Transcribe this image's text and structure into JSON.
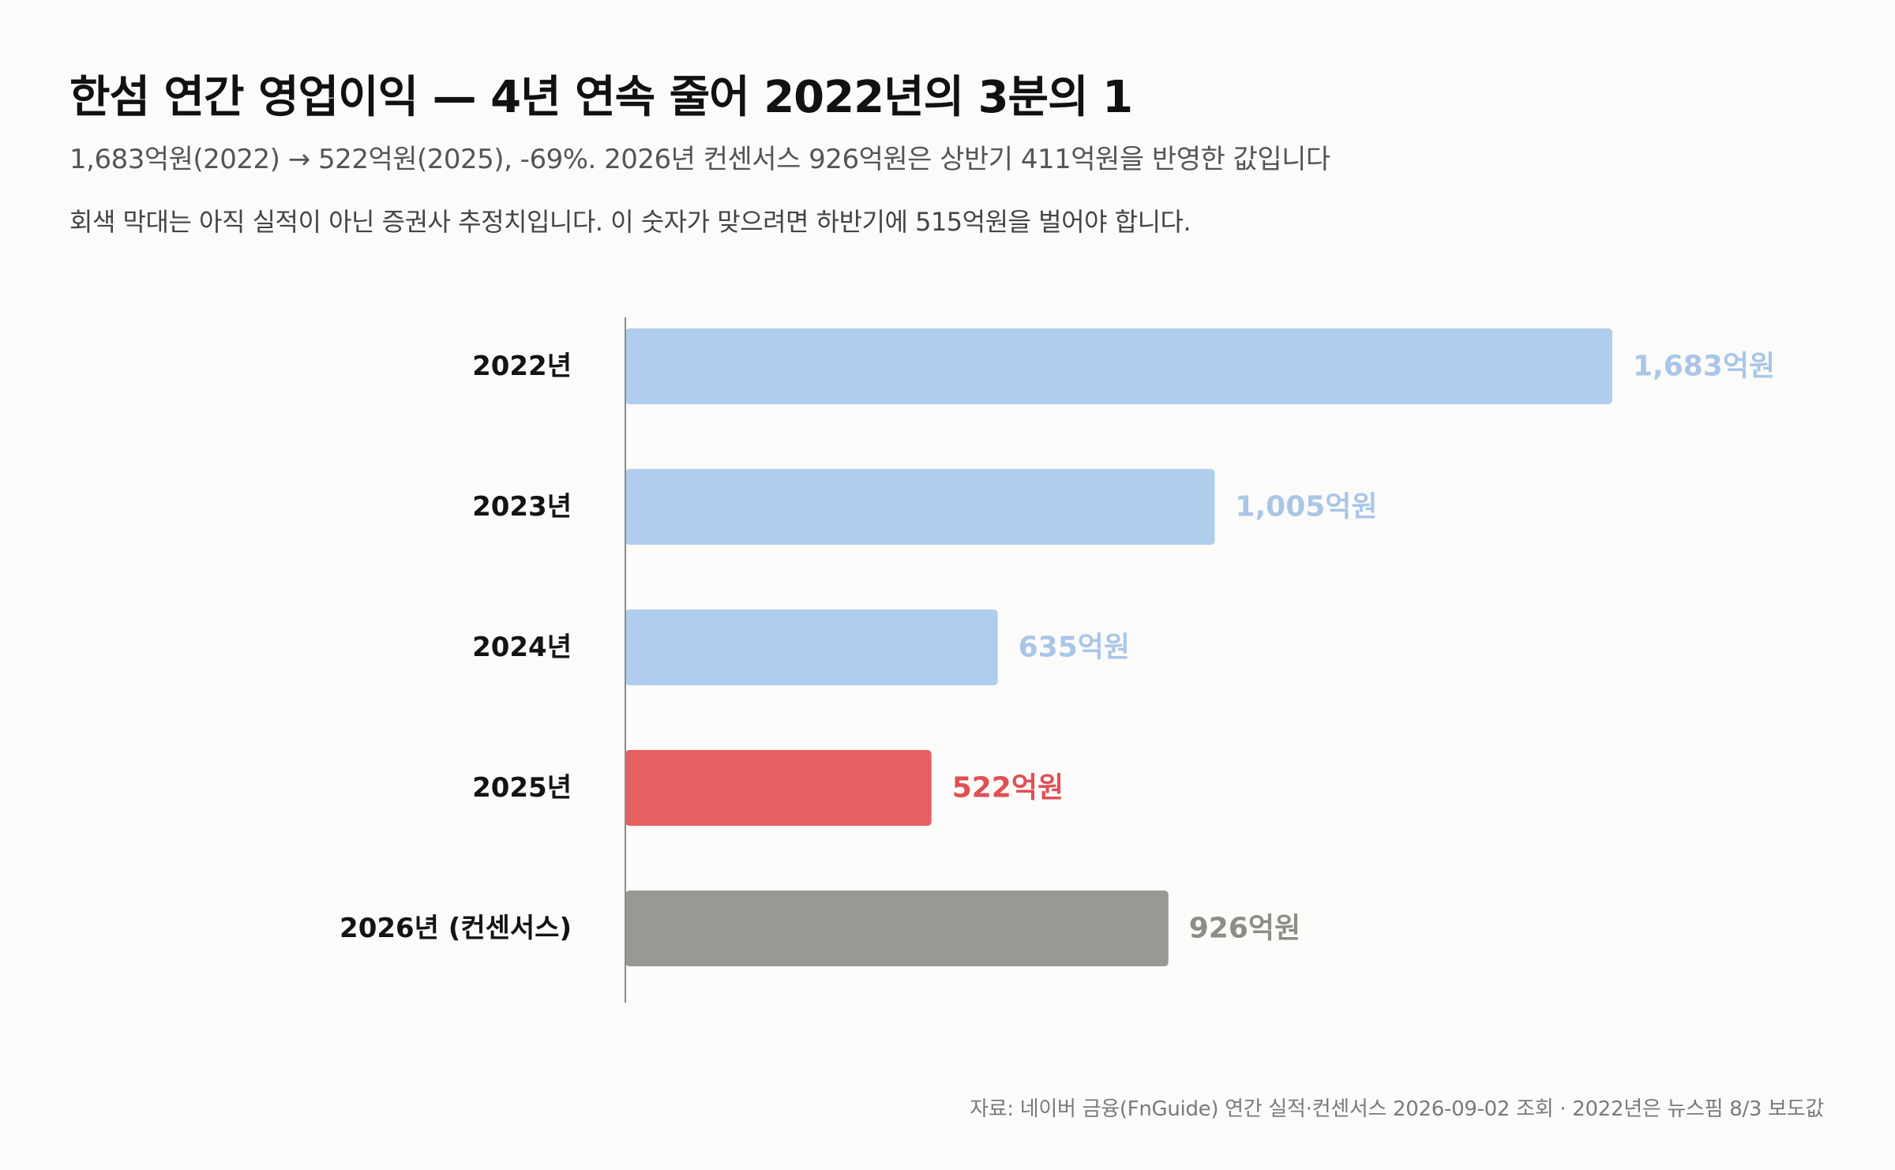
{
  "header": {
    "title": "한섬 연간 영업이익 — 4년 연속 줄어 2022년의 3분의 1",
    "subtitle": "1,683억원(2022) → 522억원(2025), -69%. 2026년 컨센서스 926억원은 상반기 411억원을 반영한 값입니다",
    "note": "회색 막대는 아직 실적이 아닌 증권사 추정치입니다. 이 숫자가 맞으려면 하반기에 515억원을 벌어야 합니다."
  },
  "footer": {
    "source": "자료: 네이버 금융(FnGuide) 연간 실적·컨센서스 2026-09-02 조회 · 2022년은 뉴스핌 8/3 보도값"
  },
  "chart_data": {
    "type": "bar",
    "orientation": "horizontal",
    "categories": [
      "2022년",
      "2023년",
      "2024년",
      "2025년",
      "2026년 (컨센서스)"
    ],
    "values": [
      1683,
      1005,
      635,
      522,
      926
    ],
    "value_labels": [
      "1,683억원",
      "1,005억원",
      "635억원",
      "522억원",
      "926억원"
    ],
    "bar_colors": [
      "#b0cdee",
      "#b0cdee",
      "#b0cdee",
      "#e55f63",
      "#999893"
    ],
    "label_colors": [
      "#a9c6e8",
      "#a9c6e8",
      "#a9c6e8",
      "#e04f54",
      "#8d8d88"
    ],
    "unit": "억원",
    "xlim": [
      0,
      1683
    ],
    "grid": false,
    "legend": "none"
  }
}
